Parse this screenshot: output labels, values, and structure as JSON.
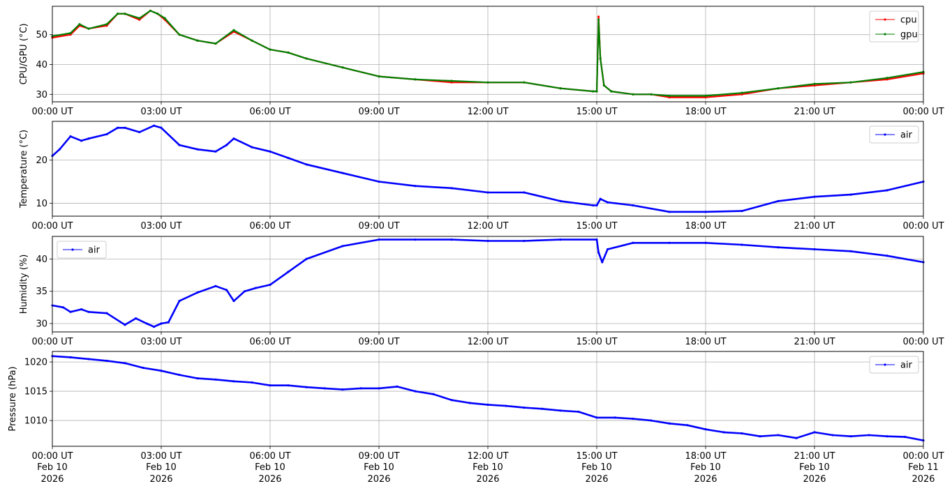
{
  "chart_data": [
    {
      "type": "line",
      "ylabel": "CPU/GPU (°C)",
      "ylim": [
        27.5,
        59.5
      ],
      "yticks": [
        30,
        40,
        50
      ],
      "grid": true,
      "legend": "top-right",
      "series": [
        {
          "name": "cpu",
          "color": "#ff0000",
          "x": [
            0,
            0.5,
            0.75,
            1.0,
            1.5,
            1.8,
            2.0,
            2.4,
            2.7,
            2.9,
            3.1,
            3.5,
            4.0,
            4.5,
            5.0,
            5.5,
            6.0,
            6.5,
            7.0,
            8.0,
            9.0,
            10.0,
            11.0,
            12.0,
            13.0,
            14.0,
            14.9,
            15.0,
            15.05,
            15.1,
            15.2,
            15.4,
            16.0,
            16.5,
            17.0,
            18.0,
            19.0,
            20.0,
            21.0,
            22.0,
            23.0,
            24.0
          ],
          "y": [
            49,
            50,
            53,
            52,
            53,
            57,
            57,
            55,
            58,
            57,
            55,
            50,
            48,
            47,
            51,
            48,
            45,
            44,
            42,
            39,
            36,
            35,
            34,
            34,
            34,
            32,
            31,
            31,
            56,
            42,
            33,
            31,
            30,
            30,
            29,
            29,
            30,
            32,
            33,
            34,
            35,
            37
          ]
        },
        {
          "name": "gpu",
          "color": "#008000",
          "x": [
            0,
            0.5,
            0.75,
            1.0,
            1.5,
            1.8,
            2.0,
            2.4,
            2.7,
            2.9,
            3.1,
            3.5,
            4.0,
            4.5,
            5.0,
            5.5,
            6.0,
            6.5,
            7.0,
            8.0,
            9.0,
            10.0,
            11.0,
            12.0,
            13.0,
            14.0,
            14.9,
            15.0,
            15.05,
            15.1,
            15.2,
            15.4,
            16.0,
            16.5,
            17.0,
            18.0,
            19.0,
            20.0,
            21.0,
            22.0,
            23.0,
            24.0
          ],
          "y": [
            49.5,
            50.5,
            53.5,
            52,
            53.5,
            57,
            57,
            55.5,
            58,
            57,
            55.5,
            50,
            48,
            47,
            51.5,
            48,
            45,
            44,
            42,
            39,
            36,
            35,
            34.5,
            34,
            34,
            32,
            31,
            31,
            55,
            42,
            33,
            31,
            30,
            30,
            29.5,
            29.5,
            30.5,
            32,
            33.5,
            34,
            35.5,
            37.5
          ]
        }
      ]
    },
    {
      "type": "line",
      "ylabel": "Temperature (°C)",
      "ylim": [
        7,
        29
      ],
      "yticks": [
        10,
        20
      ],
      "grid": true,
      "legend": "top-right",
      "series": [
        {
          "name": "air",
          "color": "#0000ff",
          "x": [
            0,
            0.2,
            0.5,
            0.8,
            1.0,
            1.5,
            1.8,
            2.0,
            2.4,
            2.8,
            3.0,
            3.5,
            4.0,
            4.5,
            4.8,
            5.0,
            5.5,
            6.0,
            6.5,
            7.0,
            8.0,
            9.0,
            10.0,
            11.0,
            12.0,
            13.0,
            14.0,
            14.9,
            15.0,
            15.1,
            15.3,
            16.0,
            17.0,
            18.0,
            19.0,
            20.0,
            21.0,
            22.0,
            23.0,
            24.0
          ],
          "y": [
            21,
            22.5,
            25.5,
            24.5,
            25,
            26,
            27.5,
            27.5,
            26.5,
            28,
            27.5,
            23.5,
            22.5,
            22,
            23.5,
            25,
            23,
            22,
            20.5,
            19,
            17,
            15,
            14,
            13.5,
            12.5,
            12.5,
            10.5,
            9.5,
            9.5,
            11,
            10.2,
            9.5,
            8,
            8,
            8.2,
            10.5,
            11.5,
            12,
            13,
            15
          ]
        }
      ]
    },
    {
      "type": "line",
      "ylabel": "Humidity (%)",
      "ylim": [
        28.7,
        43.5
      ],
      "yticks": [
        30,
        35,
        40
      ],
      "grid": true,
      "legend": "top-left",
      "series": [
        {
          "name": "air",
          "color": "#0000ff",
          "x": [
            0,
            0.3,
            0.5,
            0.8,
            1.0,
            1.5,
            2.0,
            2.3,
            2.6,
            2.8,
            3.0,
            3.2,
            3.5,
            4.0,
            4.5,
            4.8,
            5.0,
            5.3,
            5.6,
            6.0,
            6.5,
            7.0,
            8.0,
            9.0,
            10.0,
            11.0,
            12.0,
            13.0,
            14.0,
            15.0,
            15.05,
            15.15,
            15.3,
            16.0,
            17.0,
            18.0,
            19.0,
            20.0,
            21.0,
            22.0,
            23.0,
            24.0
          ],
          "y": [
            32.8,
            32.5,
            31.8,
            32.2,
            31.8,
            31.6,
            29.8,
            30.8,
            30.0,
            29.5,
            30.0,
            30.2,
            33.5,
            34.8,
            35.8,
            35.2,
            33.5,
            35.0,
            35.5,
            36.0,
            38.0,
            40.0,
            42.0,
            43.0,
            43.0,
            43.0,
            42.8,
            42.8,
            43.0,
            43.0,
            41.0,
            39.5,
            41.5,
            42.5,
            42.5,
            42.5,
            42.2,
            41.8,
            41.5,
            41.2,
            40.5,
            39.5
          ]
        }
      ]
    },
    {
      "type": "line",
      "ylabel": "Pressure (hPa)",
      "ylim": [
        1005.6,
        1021.8
      ],
      "yticks": [
        1010,
        1015,
        1020
      ],
      "grid": true,
      "legend": "top-right",
      "series": [
        {
          "name": "air",
          "color": "#0000ff",
          "x": [
            0,
            0.5,
            1.0,
            1.5,
            2.0,
            2.5,
            3.0,
            3.5,
            4.0,
            4.5,
            5.0,
            5.5,
            6.0,
            6.5,
            7.0,
            7.5,
            8.0,
            8.5,
            9.0,
            9.5,
            10.0,
            10.5,
            11.0,
            11.5,
            12.0,
            12.5,
            13.0,
            13.5,
            14.0,
            14.5,
            15.0,
            15.5,
            16.0,
            16.5,
            17.0,
            17.5,
            18.0,
            18.5,
            19.0,
            19.5,
            20.0,
            20.5,
            21.0,
            21.5,
            22.0,
            22.5,
            23.0,
            23.5,
            24.0
          ],
          "y": [
            1021,
            1020.8,
            1020.5,
            1020.2,
            1019.8,
            1019,
            1018.5,
            1017.8,
            1017.2,
            1017,
            1016.7,
            1016.5,
            1016,
            1016,
            1015.7,
            1015.5,
            1015.3,
            1015.5,
            1015.5,
            1015.8,
            1015,
            1014.5,
            1013.5,
            1013,
            1012.7,
            1012.5,
            1012.2,
            1012,
            1011.7,
            1011.5,
            1010.5,
            1010.5,
            1010.3,
            1010,
            1009.5,
            1009.2,
            1008.5,
            1008,
            1007.8,
            1007.3,
            1007.5,
            1007,
            1008,
            1007.5,
            1007.3,
            1007.5,
            1007.3,
            1007.2,
            1006.6
          ]
        }
      ]
    }
  ],
  "xaxis": {
    "xlim": [
      0,
      24
    ],
    "ticks": [
      0,
      3,
      6,
      9,
      12,
      15,
      18,
      21,
      24
    ],
    "time_labels": [
      "00:00 UT",
      "03:00 UT",
      "06:00 UT",
      "09:00 UT",
      "12:00 UT",
      "15:00 UT",
      "18:00 UT",
      "21:00 UT",
      "00:00 UT"
    ],
    "date_labels": [
      "Feb 10",
      "Feb 10",
      "Feb 10",
      "Feb 10",
      "Feb 10",
      "Feb 10",
      "Feb 10",
      "Feb 10",
      "Feb 11"
    ],
    "year_labels": [
      "2026",
      "2026",
      "2026",
      "2026",
      "2026",
      "2026",
      "2026",
      "2026",
      "2026"
    ]
  }
}
